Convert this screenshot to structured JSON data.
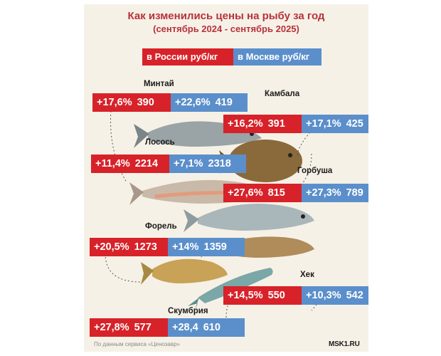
{
  "title": "Как изменились цены на рыбу за год",
  "subtitle": "(сентябрь 2024 - сентябрь 2025)",
  "legend": {
    "russia": "в России  руб/кг",
    "moscow": "в Москве  руб/кг"
  },
  "colors": {
    "russia": "#d72229",
    "moscow": "#5b8fcb",
    "title": "#b7323c",
    "background": "#f6f1e6"
  },
  "chart_data": {
    "type": "table",
    "title": "Как изменились цены на рыбу за год",
    "subtitle": "(сентябрь 2024 - сентябрь 2025)",
    "series": [
      {
        "name": "в России  руб/кг"
      },
      {
        "name": "в Москве  руб/кг"
      }
    ],
    "rows": [
      {
        "fish": "Минтай",
        "russia": {
          "change": "+17,6%",
          "price": "390"
        },
        "moscow": {
          "change": "+22,6%",
          "price": "419"
        }
      },
      {
        "fish": "Камбала",
        "russia": {
          "change": "+16,2%",
          "price": "391"
        },
        "moscow": {
          "change": "+17,1%",
          "price": "425"
        }
      },
      {
        "fish": "Лосось",
        "russia": {
          "change": "+11,4%",
          "price": "2214"
        },
        "moscow": {
          "change": "+7,1%",
          "price": "2318"
        }
      },
      {
        "fish": "Горбуша",
        "russia": {
          "change": "+27,6%",
          "price": "815"
        },
        "moscow": {
          "change": "+27,3%",
          "price": "789"
        }
      },
      {
        "fish": "Форель",
        "russia": {
          "change": "+20,5%",
          "price": "1273"
        },
        "moscow": {
          "change": "+14%",
          "price": "1359"
        }
      },
      {
        "fish": "Хек",
        "russia": {
          "change": "+14,5%",
          "price": "550"
        },
        "moscow": {
          "change": "+10,3%",
          "price": "542"
        }
      },
      {
        "fish": "Скумбрия",
        "russia": {
          "change": "+27,8%",
          "price": "577"
        },
        "moscow": {
          "change": "+28,4",
          "price": "610"
        }
      }
    ]
  },
  "source": "По данным сервиса «Ценозавр»",
  "logo": "MSK1.RU"
}
